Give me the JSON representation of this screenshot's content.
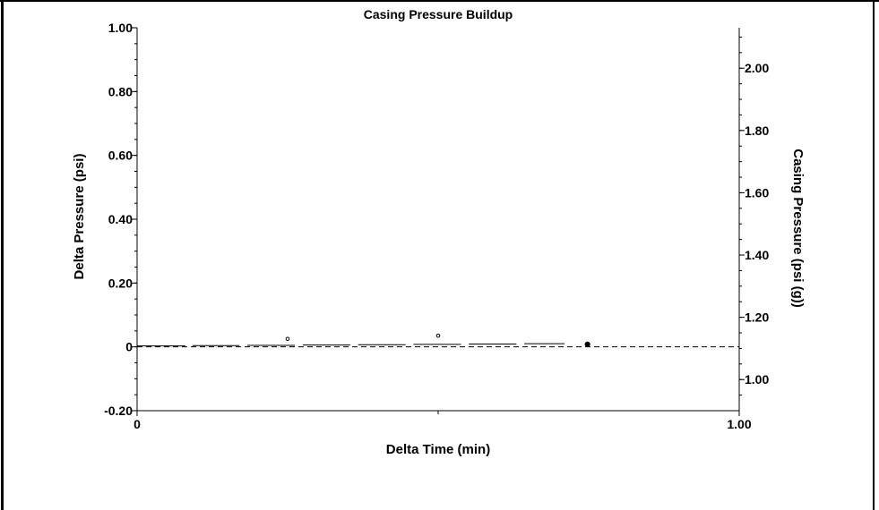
{
  "chart_data": {
    "type": "scatter",
    "title": "Casing Pressure Buildup",
    "xlabel": "Delta Time (min)",
    "ylabel": "Delta Pressure (psi)",
    "y2label": "Casing Pressure (psi (g))",
    "xlim": [
      0,
      1.0
    ],
    "ylim": [
      -0.2,
      1.0
    ],
    "y2lim": [
      0.9,
      2.13
    ],
    "x_tick_labels": [
      {
        "value": 0,
        "label": "0"
      },
      {
        "value": 1.0,
        "label": "1.00"
      }
    ],
    "y_tick_labels": [
      {
        "value": 1.0,
        "label": "1.00"
      },
      {
        "value": 0.8,
        "label": "0.80"
      },
      {
        "value": 0.6,
        "label": "0.60"
      },
      {
        "value": 0.4,
        "label": "0.40"
      },
      {
        "value": 0.2,
        "label": "0.20"
      },
      {
        "value": 0,
        "label": "0"
      },
      {
        "value": -0.2,
        "label": "-0.20"
      }
    ],
    "y2_tick_labels": [
      {
        "value": 2.0,
        "label": "2.00"
      },
      {
        "value": 1.8,
        "label": "1.80"
      },
      {
        "value": 1.6,
        "label": "1.60"
      },
      {
        "value": 1.4,
        "label": "1.40"
      },
      {
        "value": 1.2,
        "label": "1.20"
      },
      {
        "value": 1.0,
        "label": "1.00"
      }
    ],
    "reference_line": {
      "y": 0,
      "style": "dashed"
    },
    "segments": [
      {
        "x0": 0.0,
        "x1": 0.08,
        "y": 0.0
      },
      {
        "x0": 0.092,
        "x1": 0.17,
        "y": 0.001
      },
      {
        "x0": 0.183,
        "x1": 0.262,
        "y": 0.002
      },
      {
        "x0": 0.275,
        "x1": 0.354,
        "y": 0.003
      },
      {
        "x0": 0.367,
        "x1": 0.446,
        "y": 0.004
      },
      {
        "x0": 0.459,
        "x1": 0.538,
        "y": 0.005
      },
      {
        "x0": 0.551,
        "x1": 0.63,
        "y": 0.006
      },
      {
        "x0": 0.643,
        "x1": 0.71,
        "y": 0.007
      }
    ],
    "open_points": [
      {
        "x": 0.25,
        "y": 0.025
      },
      {
        "x": 0.5,
        "y": 0.035
      }
    ],
    "end_markers": [
      {
        "x": 0.748,
        "y": 0.008
      }
    ],
    "grid": false,
    "legend": "none"
  }
}
